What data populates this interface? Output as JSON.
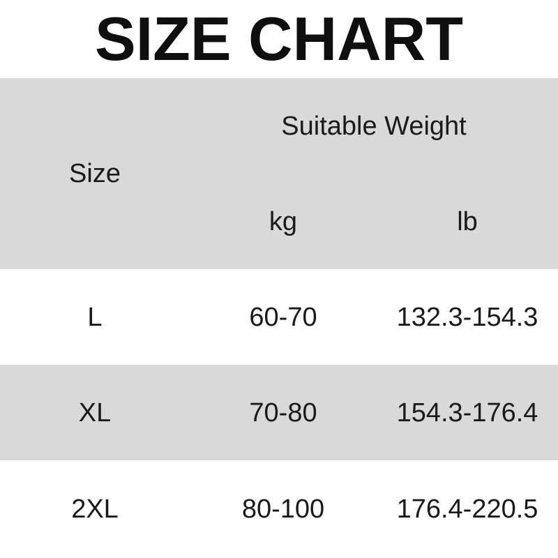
{
  "title": "SIZE CHART",
  "colors": {
    "band_gray": "#d9d9d9",
    "background": "#ffffff",
    "text": "#1a1a1a",
    "title_text": "#0f0f0f"
  },
  "chart_data": {
    "type": "table",
    "title": "SIZE CHART",
    "size_header": "Size",
    "group_header": "Suitable Weight",
    "unit_headers": {
      "kg": "kg",
      "lb": "lb"
    },
    "columns": [
      "Size",
      "Suitable Weight kg",
      "Suitable Weight lb"
    ],
    "rows": [
      {
        "size": "L",
        "kg": "60-70",
        "lb": "132.3-154.3"
      },
      {
        "size": "XL",
        "kg": "70-80",
        "lb": "154.3-176.4"
      },
      {
        "size": "2XL",
        "kg": "80-100",
        "lb": "176.4-220.5"
      }
    ]
  }
}
